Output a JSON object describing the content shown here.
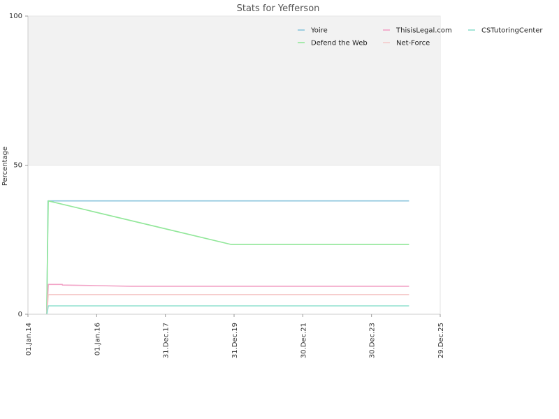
{
  "chart_data": {
    "type": "line",
    "title": "Stats for Yefferson",
    "xlabel": "",
    "ylabel": "Percentage",
    "ylim": [
      0,
      100
    ],
    "y_ticks": [
      "0",
      "50",
      "100"
    ],
    "x_ticks": [
      "01.Jan.14",
      "01.Jan.16",
      "31.Dec.17",
      "31.Dec.19",
      "30.Dec.21",
      "30.Dec.23",
      "29.Dec.25"
    ],
    "x_range": [
      "2014-01-01",
      "2025-12-29"
    ],
    "shaded_band": [
      50,
      100
    ],
    "shaded_color": "#f2f2f2",
    "legend_position": "top-right",
    "series": [
      {
        "name": "Yoire",
        "color": "#89c4dc",
        "points": [
          [
            "2014-07-20",
            0
          ],
          [
            "2014-07-28",
            22
          ],
          [
            "2014-08-02",
            38
          ],
          [
            "2025-02-01",
            38
          ]
        ]
      },
      {
        "name": "Defend the Web",
        "color": "#92e79a",
        "points": [
          [
            "2014-07-20",
            0
          ],
          [
            "2014-07-28",
            21
          ],
          [
            "2014-08-05",
            38
          ],
          [
            "2019-12-01",
            23.4
          ],
          [
            "2025-02-01",
            23.4
          ]
        ]
      },
      {
        "name": "ThisisLegal.com",
        "color": "#f2a2c6",
        "points": [
          [
            "2014-07-22",
            0
          ],
          [
            "2014-08-05",
            10
          ],
          [
            "2015-01-01",
            10
          ],
          [
            "2015-01-02",
            9.8
          ],
          [
            "2016-01-01",
            9.6
          ],
          [
            "2017-01-01",
            9.4
          ],
          [
            "2025-02-01",
            9.4
          ]
        ]
      },
      {
        "name": "Net-Force",
        "color": "#f5c9c9",
        "points": [
          [
            "2014-07-22",
            0
          ],
          [
            "2014-08-05",
            6.6
          ],
          [
            "2025-02-01",
            6.6
          ]
        ]
      },
      {
        "name": "CSTutoringCenter",
        "color": "#8fe0cf",
        "points": [
          [
            "2014-07-22",
            0
          ],
          [
            "2014-08-05",
            2.8
          ],
          [
            "2025-02-01",
            2.8
          ]
        ]
      }
    ]
  }
}
